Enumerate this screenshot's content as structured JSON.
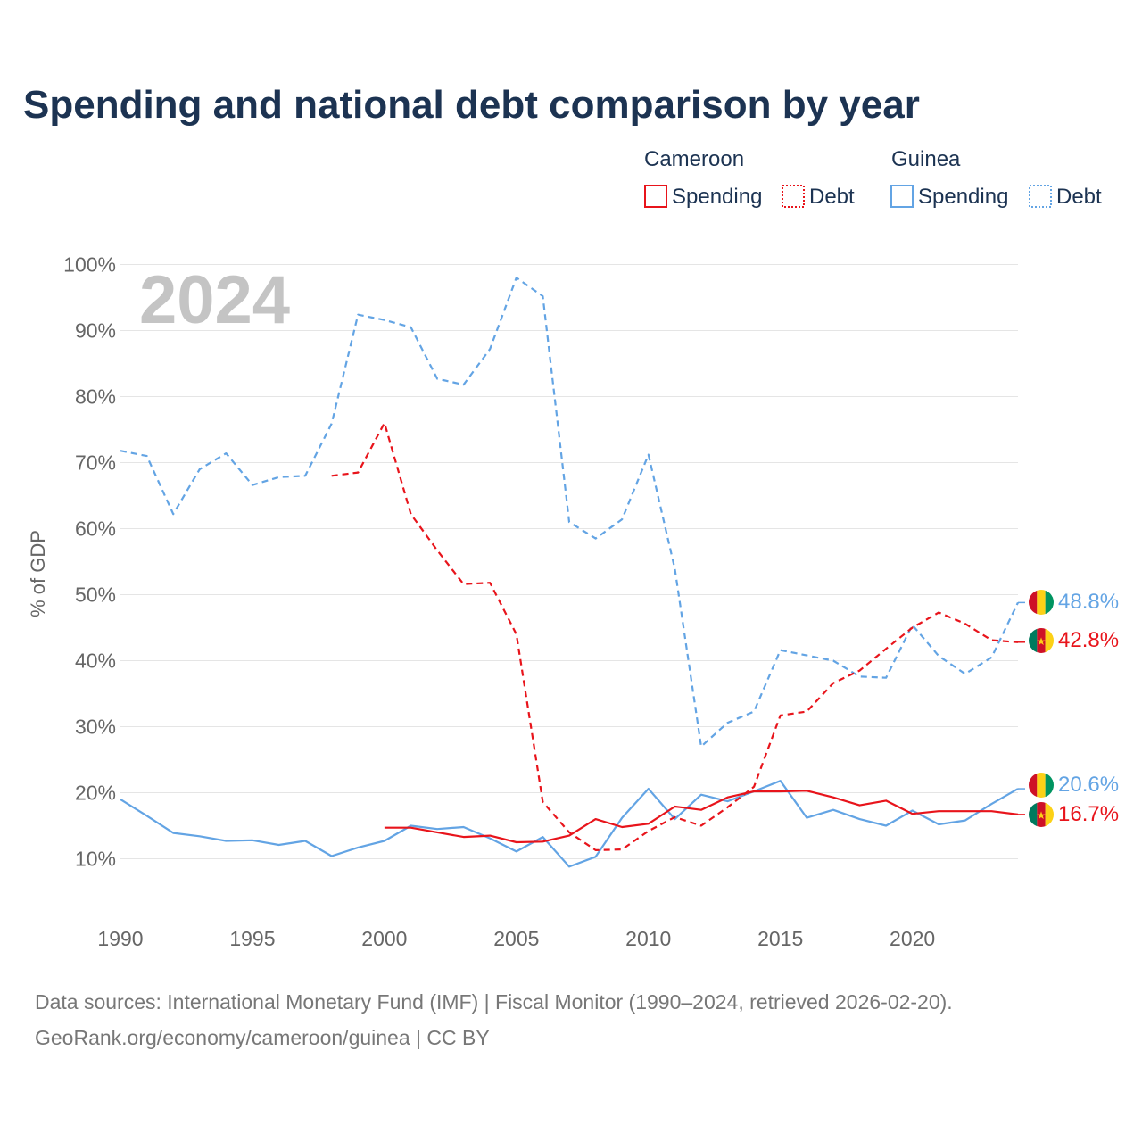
{
  "chart_data": {
    "type": "line",
    "title": "Spending and national debt comparison by year",
    "year_watermark": "2024",
    "ylabel": "% of GDP",
    "xlabel": "",
    "xlim": [
      1990,
      2024
    ],
    "ylim": [
      0,
      100
    ],
    "x_ticks": [
      1990,
      1995,
      2000,
      2005,
      2010,
      2015,
      2020
    ],
    "y_ticks": [
      {
        "value": 10,
        "label": "10%"
      },
      {
        "value": 20,
        "label": "20%"
      },
      {
        "value": 30,
        "label": "30%"
      },
      {
        "value": 40,
        "label": "40%"
      },
      {
        "value": 50,
        "label": "50%"
      },
      {
        "value": 60,
        "label": "60%"
      },
      {
        "value": 70,
        "label": "70%"
      },
      {
        "value": 80,
        "label": "80%"
      },
      {
        "value": 90,
        "label": "90%"
      },
      {
        "value": 100,
        "label": "100%"
      }
    ],
    "legend": {
      "placement": "top-right",
      "groups": [
        {
          "name": "Cameroon",
          "items": [
            "Spending",
            "Debt"
          ]
        },
        {
          "name": "Guinea",
          "items": [
            "Spending",
            "Debt"
          ]
        }
      ]
    },
    "colors": {
      "Cameroon": "#e8141b",
      "Guinea": "#63a4e4"
    },
    "series": [
      {
        "name": "Cameroon Spending",
        "country": "Cameroon",
        "metric": "Spending",
        "style": "solid",
        "x": [
          2000,
          2001,
          2002,
          2003,
          2004,
          2005,
          2006,
          2007,
          2008,
          2009,
          2010,
          2011,
          2012,
          2013,
          2014,
          2015,
          2016,
          2017,
          2018,
          2019,
          2020,
          2021,
          2022,
          2023,
          2024
        ],
        "values": [
          14.7,
          14.7,
          14.0,
          13.3,
          13.5,
          12.5,
          12.6,
          13.5,
          16.0,
          14.8,
          15.3,
          17.9,
          17.4,
          19.3,
          20.2,
          20.2,
          20.3,
          19.3,
          18.1,
          18.8,
          16.8,
          17.2,
          17.2,
          17.2,
          16.7
        ],
        "end_label": "16.7%"
      },
      {
        "name": "Cameroon Debt",
        "country": "Cameroon",
        "metric": "Debt",
        "style": "dashed",
        "x": [
          1998,
          1999,
          2000,
          2001,
          2002,
          2003,
          2004,
          2005,
          2006,
          2007,
          2008,
          2009,
          2010,
          2011,
          2012,
          2013,
          2014,
          2015,
          2016,
          2017,
          2018,
          2019,
          2020,
          2021,
          2022,
          2023,
          2024
        ],
        "values": [
          68.0,
          68.5,
          76.0,
          62.2,
          56.7,
          51.6,
          51.8,
          44.0,
          18.6,
          14.0,
          11.3,
          11.4,
          14.2,
          16.3,
          15.0,
          17.8,
          20.9,
          31.7,
          32.3,
          36.6,
          38.5,
          41.8,
          45.0,
          47.3,
          45.6,
          43.1,
          42.8
        ],
        "end_label": "42.8%"
      },
      {
        "name": "Guinea Spending",
        "country": "Guinea",
        "metric": "Spending",
        "style": "solid",
        "x": [
          1990,
          1991,
          1992,
          1993,
          1994,
          1995,
          1996,
          1997,
          1998,
          1999,
          2000,
          2001,
          2002,
          2003,
          2004,
          2005,
          2006,
          2007,
          2008,
          2009,
          2010,
          2011,
          2012,
          2013,
          2014,
          2015,
          2016,
          2017,
          2018,
          2019,
          2020,
          2021,
          2022,
          2023,
          2024
        ],
        "values": [
          19.0,
          16.5,
          13.9,
          13.4,
          12.7,
          12.8,
          12.1,
          12.7,
          10.4,
          11.7,
          12.7,
          15.0,
          14.5,
          14.8,
          13.1,
          11.1,
          13.3,
          8.8,
          10.3,
          16.2,
          20.6,
          16.0,
          19.7,
          18.7,
          20.2,
          21.8,
          16.2,
          17.4,
          16.0,
          15.0,
          17.3,
          15.2,
          15.8,
          18.3,
          20.6
        ],
        "end_label": "20.6%"
      },
      {
        "name": "Guinea Debt",
        "country": "Guinea",
        "metric": "Debt",
        "style": "dashed",
        "x": [
          1990,
          1991,
          1992,
          1993,
          1994,
          1995,
          1996,
          1997,
          1998,
          1999,
          2000,
          2001,
          2002,
          2003,
          2004,
          2005,
          2006,
          2007,
          2008,
          2009,
          2010,
          2011,
          2012,
          2013,
          2014,
          2015,
          2016,
          2017,
          2018,
          2019,
          2020,
          2021,
          2022,
          2023,
          2024
        ],
        "values": [
          71.8,
          71.0,
          62.2,
          69.0,
          71.4,
          66.6,
          67.8,
          68.0,
          75.9,
          92.4,
          91.6,
          90.5,
          82.7,
          81.8,
          87.2,
          98.0,
          95.2,
          61.0,
          58.5,
          61.4,
          71.2,
          53.9,
          27.0,
          30.6,
          32.3,
          41.6,
          40.8,
          40.0,
          37.6,
          37.4,
          45.4,
          40.7,
          38.0,
          40.5,
          48.8
        ],
        "end_label": "48.8%"
      }
    ]
  },
  "footer": {
    "source_line": "Data sources: International Monetary Fund (IMF) | Fiscal Monitor (1990–2024, retrieved 2026-02-20).",
    "credit_line": "GeoRank.org/economy/cameroon/guinea | CC BY"
  }
}
